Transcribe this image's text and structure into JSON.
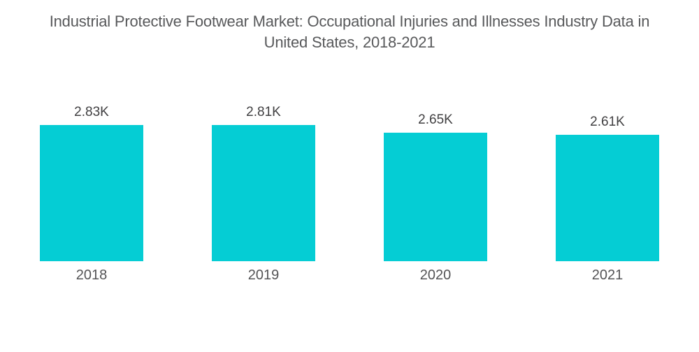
{
  "title": {
    "line1": "Industrial Protective Footwear Market: Occupational Injuries and Illnesses Industry Data in",
    "line2": "United States, 2018-2021"
  },
  "chart_data": {
    "type": "bar",
    "title": "Industrial Protective Footwear Market: Occupational Injuries and Illnesses Industry Data in United States, 2018-2021",
    "categories": [
      "2018",
      "2019",
      "2020",
      "2021"
    ],
    "values": [
      2830,
      2810,
      2650,
      2610
    ],
    "value_labels": [
      "2.83K",
      "2.81K",
      "2.65K",
      "2.61K"
    ],
    "unit": "K",
    "xlabel": "",
    "ylabel": "",
    "ylim": [
      0,
      2830
    ],
    "grid": false,
    "legend": false,
    "data_labels_position": "above-bars"
  },
  "colors": {
    "background": "#FFFFFF",
    "bar": "#05CDD4",
    "title_text": "#58595B",
    "value_label_text": "#414042",
    "axis_label_text": "#535355"
  }
}
